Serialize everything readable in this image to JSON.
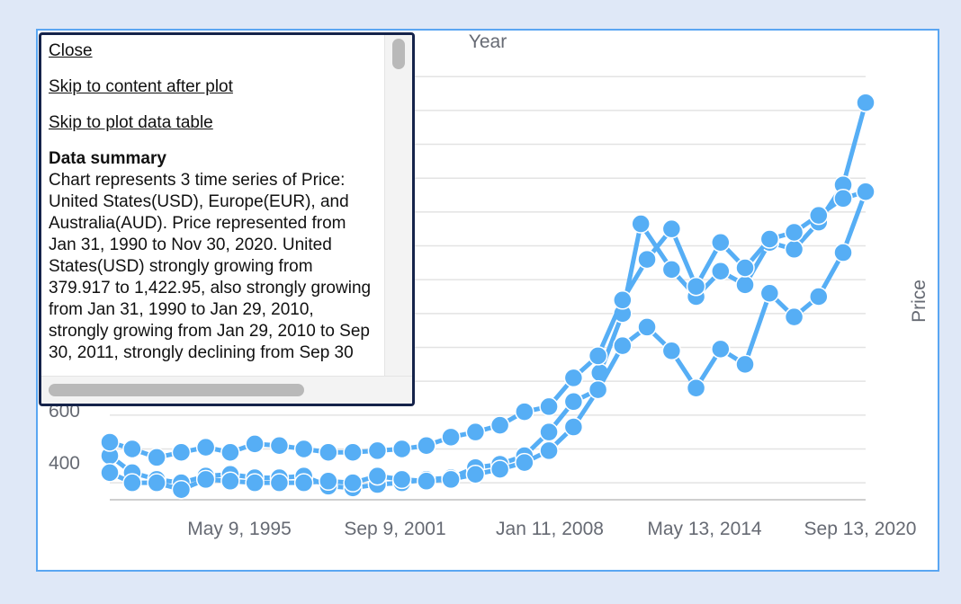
{
  "screen_reader": {
    "close": "Close",
    "skip_after": "Skip to content after plot",
    "skip_table": "Skip to plot data table",
    "summary_heading": "Data summary",
    "summary_text": "Chart represents 3 time series of Price: United States(USD), Europe(EUR), and Australia(AUD). Price represented from Jan 31, 1990 to Nov 30, 2020. United States(USD) strongly growing from 379.917 to 1,422.95, also strongly growing from Jan 31, 1990 to Jan 29, 2010, strongly growing from Jan 29, 2010 to Sep 30, 2011, strongly declining from Sep 30"
  },
  "colors": {
    "series": "#56aef5",
    "grid": "#e3e3e3",
    "frame": "#5aa6f2"
  },
  "chart_data": {
    "type": "line",
    "title": "",
    "xlabel": "Year",
    "ylabel": "Price",
    "x_ticks": [
      "May 9, 1995",
      "Sep 9, 2001",
      "Jan 11, 2008",
      "May 13, 2014",
      "Sep 13, 2020"
    ],
    "y_ticks_visible": [
      "400",
      "600"
    ],
    "ylim": [
      250,
      1620
    ],
    "xlim": [
      "1990-01-31",
      "2020-11-30"
    ],
    "grid": "horizontal",
    "markers": "circle",
    "series": [
      {
        "name": "United States(USD)",
        "x": [
          "1990-01-31",
          "1990-12-31",
          "1991-12-31",
          "1992-12-31",
          "1993-12-31",
          "1994-12-31",
          "1995-12-31",
          "1996-12-31",
          "1997-12-31",
          "1998-12-31",
          "1999-12-31",
          "2000-12-31",
          "2001-12-31",
          "2002-12-31",
          "2003-12-31",
          "2004-12-31",
          "2005-12-31",
          "2006-12-31",
          "2007-12-31",
          "2008-12-31",
          "2009-12-31",
          "2010-01-29",
          "2010-12-31",
          "2011-09-30",
          "2012-12-31",
          "2013-12-31",
          "2014-12-31",
          "2015-12-31",
          "2016-12-31",
          "2017-12-31",
          "2018-12-31",
          "2019-12-31",
          "2020-11-30"
        ],
        "y": [
          380,
          330,
          310,
          300,
          320,
          325,
          315,
          315,
          320,
          290,
          285,
          295,
          300,
          310,
          315,
          345,
          355,
          380,
          450,
          540,
          575,
          625,
          800,
          1065,
          930,
          850,
          925,
          885,
          1010,
          990,
          1070,
          1180,
          1422.95
        ]
      },
      {
        "name": "Europe(EUR)",
        "x": [
          "1990-01-31",
          "1990-12-31",
          "1991-12-31",
          "1992-12-31",
          "1993-12-31",
          "1994-12-31",
          "1995-12-31",
          "1996-12-31",
          "1997-12-31",
          "1998-12-31",
          "1999-12-31",
          "2000-12-31",
          "2001-12-31",
          "2002-12-31",
          "2003-12-31",
          "2004-12-31",
          "2005-12-31",
          "2006-12-31",
          "2007-12-31",
          "2008-12-31",
          "2009-12-31",
          "2010-12-31",
          "2011-12-31",
          "2012-12-31",
          "2013-12-31",
          "2014-12-31",
          "2015-12-31",
          "2016-12-31",
          "2017-12-31",
          "2018-12-31",
          "2019-12-31",
          "2020-11-30"
        ],
        "y": [
          330,
          300,
          300,
          280,
          310,
          305,
          300,
          300,
          300,
          305,
          300,
          320,
          310,
          305,
          310,
          325,
          340,
          360,
          395,
          465,
          575,
          705,
          760,
          690,
          580,
          695,
          650,
          860,
          790,
          850,
          980,
          1160
        ]
      },
      {
        "name": "Australia(AUD)",
        "x": [
          "1990-01-31",
          "1990-12-31",
          "1991-12-31",
          "1992-12-31",
          "1993-12-31",
          "1994-12-31",
          "1995-12-31",
          "1996-12-31",
          "1997-12-31",
          "1998-12-31",
          "1999-12-31",
          "2000-12-31",
          "2001-12-31",
          "2002-12-31",
          "2003-12-31",
          "2004-12-31",
          "2005-12-31",
          "2006-12-31",
          "2007-12-31",
          "2008-12-31",
          "2009-12-31",
          "2010-12-31",
          "2011-12-31",
          "2012-12-31",
          "2013-12-31",
          "2014-12-31",
          "2015-12-31",
          "2016-12-31",
          "2017-12-31",
          "2018-12-31",
          "2019-12-31",
          "2020-11-30"
        ],
        "y": [
          420,
          400,
          375,
          390,
          405,
          390,
          415,
          410,
          400,
          390,
          390,
          395,
          400,
          410,
          435,
          450,
          470,
          510,
          525,
          610,
          675,
          840,
          960,
          1050,
          880,
          1010,
          935,
          1020,
          1040,
          1090,
          1140,
          1160
        ]
      }
    ]
  }
}
